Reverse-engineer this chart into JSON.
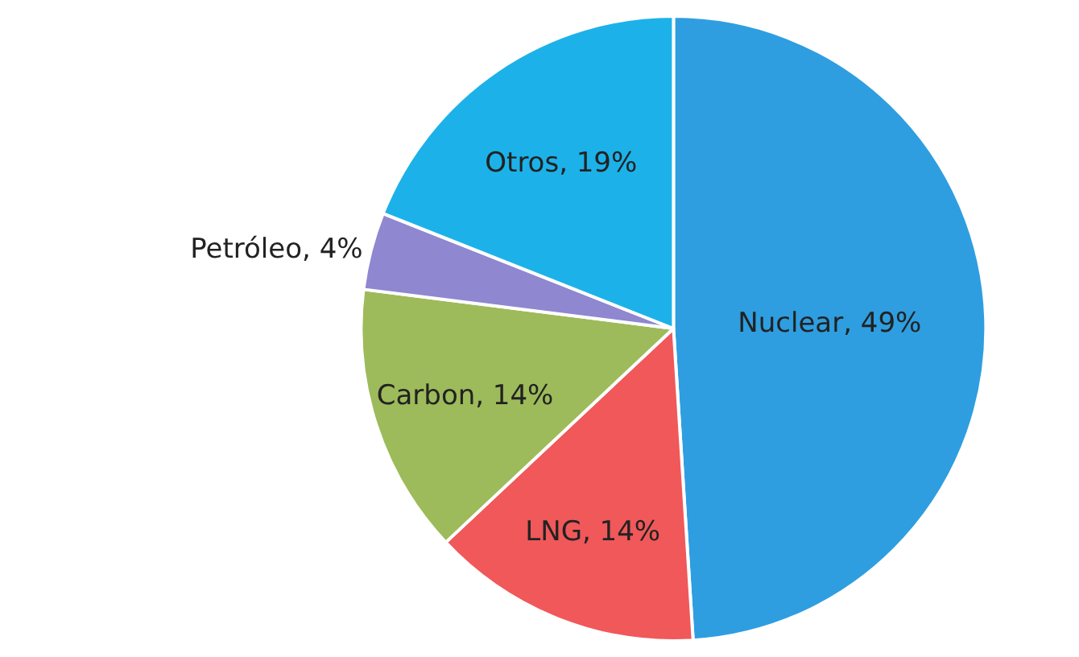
{
  "chart_data": {
    "type": "pie",
    "categories": [
      "Nuclear, 49%",
      "LNG, 14%",
      "Carbon, 14%",
      "Petróleo, 4%",
      "Otros, 19%"
    ],
    "values": [
      49,
      14,
      14,
      4,
      19
    ],
    "colors": [
      "#2e9ee0",
      "#f0585a",
      "#9dbb5a",
      "#8f87d0",
      "#1cb2e9"
    ],
    "legend": false
  }
}
